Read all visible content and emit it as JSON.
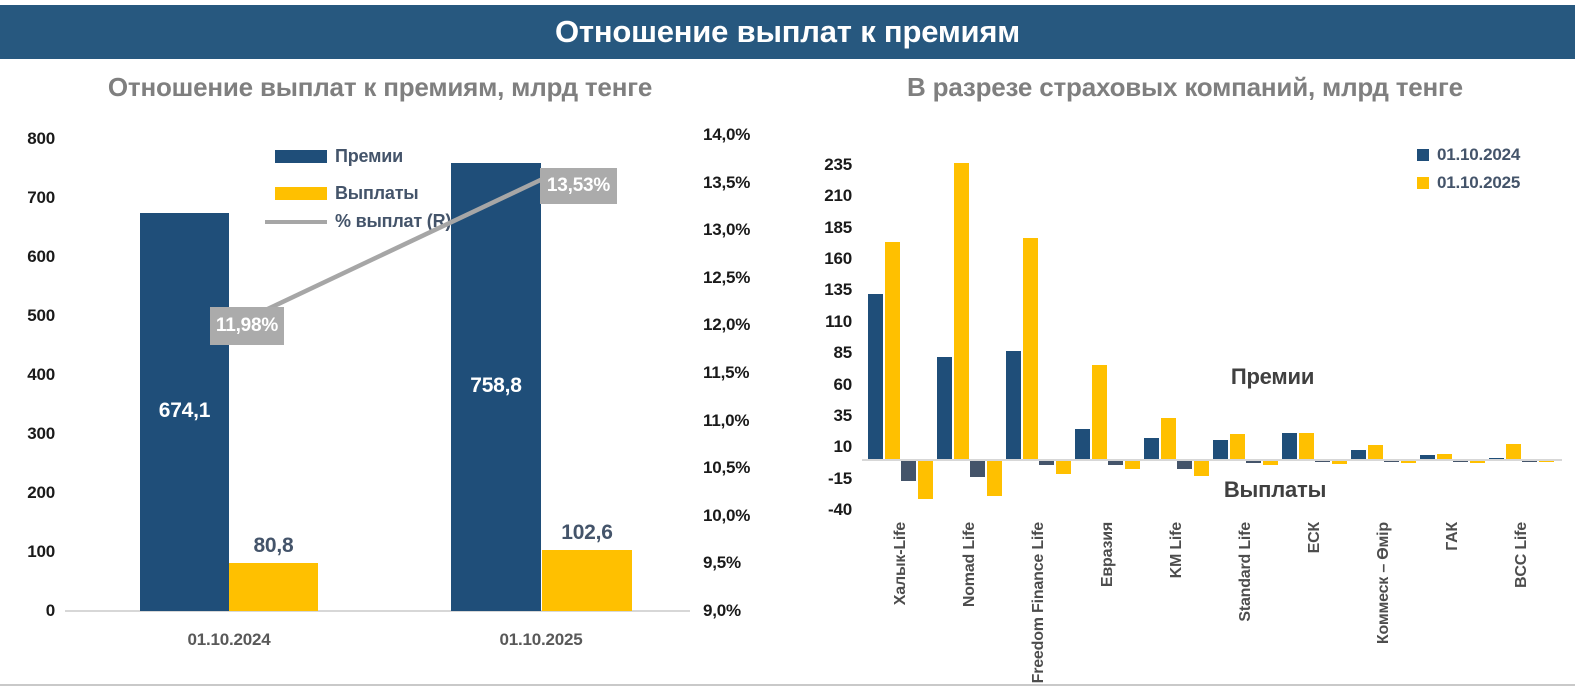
{
  "banner": {
    "title": "Отношение выплат к премиям"
  },
  "colors": {
    "banner_bg": "#27587F",
    "premiums_blue": "#1F4E79",
    "payments_gold": "#FFC000",
    "payments_2024_slate": "#44546A",
    "ratio_line_gray": "#A6A6A6",
    "label_box_gray": "#ABABAB"
  },
  "chart_data": [
    {
      "type": "bar+line",
      "title": "Отношение выплат к премиям, млрд тенге",
      "categories": [
        "01.10.2024",
        "01.10.2025"
      ],
      "series": [
        {
          "name": "Премии",
          "kind": "bar",
          "color": "#1F4E79",
          "values": [
            674.1,
            758.8
          ],
          "value_labels": [
            "674,1",
            "758,8"
          ]
        },
        {
          "name": "Выплаты",
          "kind": "bar",
          "color": "#FFC000",
          "values": [
            80.8,
            102.6
          ],
          "value_labels": [
            "80,8",
            "102,6"
          ]
        },
        {
          "name": "% выплат (R)",
          "kind": "line",
          "axis": "right",
          "color": "#A6A6A6",
          "values": [
            11.98,
            13.53
          ],
          "value_labels": [
            "11,98%",
            "13,53%"
          ]
        }
      ],
      "left_axis": {
        "min": 0,
        "max": 800,
        "step": 100,
        "ticks": [
          "800",
          "700",
          "600",
          "500",
          "400",
          "300",
          "200",
          "100",
          "0"
        ]
      },
      "right_axis": {
        "min": 9,
        "max": 14,
        "step": 0.5,
        "ticks": [
          "14,0%",
          "13,5%",
          "13,0%",
          "12,5%",
          "12,0%",
          "11,5%",
          "11,0%",
          "10,5%",
          "10,0%",
          "9,5%",
          "9,0%"
        ]
      },
      "legend_position": "inside-top-right",
      "grid": false
    },
    {
      "type": "bar",
      "title": "В разрезе страховых компаний, млрд тенге",
      "categories": [
        "Халык-Life",
        "Nomad Life",
        "Freedom Finance Life",
        "Евразия",
        "KM Life",
        "Standard Life",
        "ЕСК",
        "Коммеск – Өмір",
        "ГАК",
        "BCC Life"
      ],
      "series": [
        {
          "name": "01.10.2024",
          "group": "Премии",
          "color": "#1F4E79",
          "values": [
            131,
            81,
            86,
            24,
            17,
            15,
            21,
            7,
            3,
            1
          ]
        },
        {
          "name": "01.10.2025",
          "group": "Премии",
          "color": "#FFC000",
          "values": [
            173,
            236,
            176,
            75,
            33,
            20,
            21,
            11,
            4,
            12
          ]
        },
        {
          "name": "01.10.2024",
          "group": "Выплаты",
          "color": "#44546A",
          "values": [
            -16,
            -13,
            -3,
            -3.5,
            -6,
            -1.5,
            -1,
            -1,
            -0.5,
            -0.3
          ]
        },
        {
          "name": "01.10.2025",
          "group": "Выплаты",
          "color": "#FFC000",
          "values": [
            -30,
            -28,
            -10,
            -6,
            -12,
            -3.5,
            -2,
            -1.5,
            -1.5,
            -0.7
          ]
        }
      ],
      "y_axis": {
        "min": -40,
        "max": 235,
        "step": 25,
        "ticks": [
          "235",
          "210",
          "185",
          "160",
          "135",
          "110",
          "85",
          "60",
          "35",
          "10",
          "-15",
          "-40"
        ]
      },
      "legend": [
        {
          "label": "01.10.2024",
          "color": "#1F4E79"
        },
        {
          "label": "01.10.2025",
          "color": "#FFC000"
        }
      ],
      "annotations": [
        {
          "text": "Премии"
        },
        {
          "text": "Выплаты"
        }
      ],
      "legend_position": "top-right",
      "grid": false
    }
  ]
}
